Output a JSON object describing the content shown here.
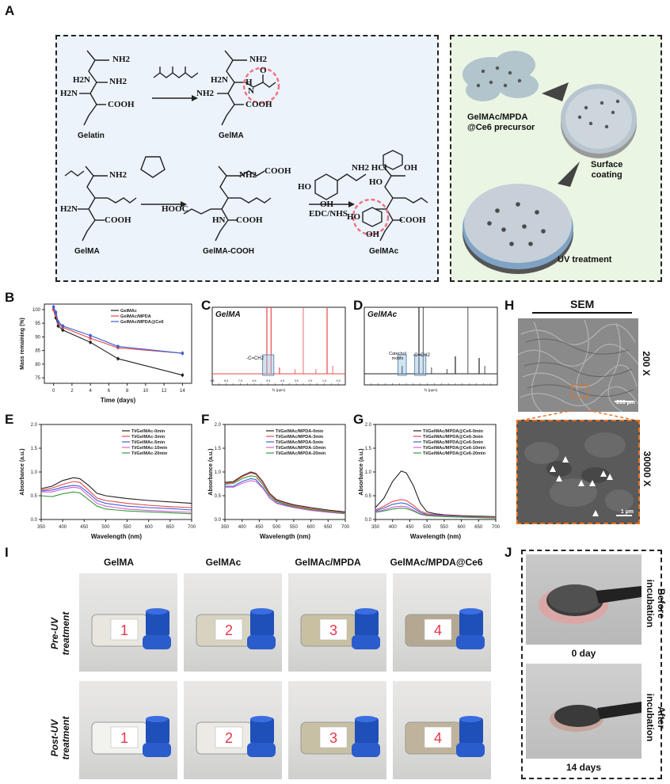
{
  "panels": {
    "A": "A",
    "B": "B",
    "C": "C",
    "D": "D",
    "E": "E",
    "F": "F",
    "G": "G",
    "H": "H",
    "I": "I",
    "J": "J"
  },
  "schemeA": {
    "row1": {
      "nh2_a": "NH2",
      "h2n_a": "H2N",
      "nh2_b": "NH2",
      "h2n_b": "H2N",
      "cooh": "COOH",
      "gelatin": "Gelatin",
      "gelma": "GelMA",
      "nh2_p1": "NH2",
      "h2n_p": "H2N",
      "nh2_p2": "NH2",
      "cooh_p": "COOH",
      "hn_p": "H",
      "n_p": "N",
      "o_p": "O"
    },
    "row2": {
      "gelma": "GelMA",
      "gelma_cooh": "GelMA-COOH",
      "gelmac": "GelMAc",
      "reagent_amine": "NH2 HCl",
      "reagent_ho": "HO",
      "reagent_oh": "OH",
      "edc": "EDC/NHS",
      "nh2": "NH2",
      "h2n": "H2N",
      "cooh": "COOH",
      "hooc": "HOOC",
      "hn": "HN",
      "ho2": "HO",
      "oh2": "OH",
      "ho3": "HO",
      "oh3": "OH",
      "cooh2": "COOH",
      "cooh3": "COOH"
    }
  },
  "schemeRight": {
    "precursor_l1": "GelMAc/MPDA",
    "precursor_l2": "@Ce6 precursor",
    "coating_l1": "Surface",
    "coating_l2": "coating",
    "uv": "UV treatment"
  },
  "chartB": {
    "ylabel": "Mass remaining (%)",
    "xlabel": "Time (days)"
  },
  "chartC": {
    "title": "GelMA",
    "annot": "-C=CH2",
    "xunit": "f1 (ppm)"
  },
  "chartD": {
    "title": "GelMAc",
    "annot1a": "Catechol",
    "annot1b": "motifs",
    "annot2": "-C=CH2",
    "xunit": "f1 (ppm)"
  },
  "chartE": {
    "ylabel": "Absorbance (a.u.)",
    "xlabel": "Wavelength (nm)"
  },
  "chartF": {
    "ylabel": "Absorbance (a.u.)",
    "xlabel": "Wavelength (nm)"
  },
  "chartG": {
    "ylabel": "Absorbance (a.u.)",
    "xlabel": "Wavelength (nm)"
  },
  "panelH": {
    "title": "SEM",
    "mag1": "200 X",
    "mag2": "30000 X",
    "scale1": "200 µm",
    "scale2": "1 µm"
  },
  "panelI": {
    "cols": [
      "GelMA",
      "GelMAc",
      "GelMAc/MPDA",
      "GelMAc/MPDA@Ce6"
    ],
    "row1_l1": "Pre-UV",
    "row1_l2": "treatment",
    "row2_l1": "Post-UV",
    "row2_l2": "treatment",
    "labels": [
      "1",
      "2",
      "3",
      "4"
    ]
  },
  "panelJ": {
    "before_l1": "Before",
    "before_l2": "incubation",
    "after_l1": "After",
    "after_l2": "incubation",
    "day0": "0 day",
    "day14": "14 days"
  },
  "colors": {
    "black": "#222222",
    "red": "#e8474a",
    "blue": "#3a5fd6",
    "pink": "#d35fd8",
    "green": "#3a9a3a",
    "scheme_bg_left": "#eaf2fb",
    "scheme_bg_right": "#e8f4e2",
    "dash_pink": "#f07080",
    "orange": "#e87020"
  },
  "chart_data": [
    {
      "type": "line",
      "panel": "B",
      "xlabel": "Time (days)",
      "ylabel": "Mass remaining (%)",
      "xlim": [
        -1,
        15
      ],
      "ylim": [
        73,
        102
      ],
      "xticks": [
        0,
        2,
        4,
        6,
        8,
        10,
        12,
        14
      ],
      "yticks": [
        75,
        80,
        85,
        90,
        95,
        100
      ],
      "tick_labels_x": [
        "0",
        "2",
        "4",
        "6",
        "8",
        "10",
        "12",
        "14"
      ],
      "tick_labels_y": [
        "75",
        "80",
        "85",
        "90",
        "95",
        "100"
      ],
      "x": [
        0,
        0.25,
        0.5,
        1,
        4,
        7,
        14
      ],
      "legend": "top-right",
      "series": [
        {
          "name": "GelMAc",
          "color": "#222222",
          "values": [
            100,
            97,
            94,
            92.5,
            88,
            82,
            76
          ]
        },
        {
          "name": "GelMAc/MPDA",
          "color": "#e8474a",
          "values": [
            100,
            98,
            95,
            93.5,
            89.5,
            86,
            84
          ]
        },
        {
          "name": "GelMAc/MPDA@Ce6",
          "color": "#3a5fd6",
          "values": [
            101,
            99,
            95.5,
            94,
            90.5,
            86.5,
            84
          ]
        }
      ]
    },
    {
      "type": "line",
      "panel": "C",
      "title": "GelMA",
      "xlabel": "f1 (ppm)",
      "x_reversed": true,
      "xlim": [
        9.5,
        0
      ],
      "tick_labels_x": [
        "9.5",
        "9.0",
        "8.5",
        "8.0",
        "7.5",
        "7.0",
        "6.5",
        "6.0",
        "5.5",
        "5.0",
        "4.5",
        "4.0",
        "3.5",
        "3.0",
        "2.5",
        "2.0",
        "1.5",
        "1.0",
        "0.5"
      ],
      "series": [
        {
          "name": "GelMA",
          "color": "#e8474a",
          "peaks_ppm": [
            5.6,
            5.3,
            4.7,
            3.6,
            3.0,
            2.1,
            1.3,
            0.9
          ]
        }
      ]
    },
    {
      "type": "line",
      "panel": "D",
      "title": "GelMAc",
      "xlabel": "f1 (ppm)",
      "x_reversed": true,
      "xlim": [
        9.5,
        0
      ],
      "series": [
        {
          "name": "GelMAc",
          "color": "#222222",
          "peaks_ppm": [
            6.8,
            5.6,
            5.3,
            4.7,
            3.6,
            3.0,
            2.1,
            1.3,
            0.9
          ]
        }
      ]
    },
    {
      "type": "line",
      "panel": "E",
      "xlabel": "Wavelength (nm)",
      "ylabel": "Absorbance (a.u.)",
      "xlim": [
        350,
        700
      ],
      "ylim": [
        0,
        2.0
      ],
      "tick_labels_x": [
        "350",
        "400",
        "450",
        "500",
        "550",
        "600",
        "650",
        "700"
      ],
      "tick_labels_y": [
        "0.0",
        "0.5",
        "1.0",
        "1.5",
        "2.0"
      ],
      "x": [
        350,
        375,
        400,
        425,
        440,
        460,
        480,
        500,
        525,
        550,
        600,
        650,
        700
      ],
      "legend": "top-right",
      "series": [
        {
          "name": "Ti/GelMAc-0min",
          "color": "#222222",
          "values": [
            0.65,
            0.7,
            0.82,
            0.88,
            0.86,
            0.72,
            0.55,
            0.5,
            0.47,
            0.44,
            0.4,
            0.37,
            0.34
          ]
        },
        {
          "name": "Ti/GelMAc-3min",
          "color": "#e8474a",
          "values": [
            0.62,
            0.66,
            0.74,
            0.8,
            0.78,
            0.62,
            0.45,
            0.4,
            0.37,
            0.34,
            0.3,
            0.27,
            0.25
          ]
        },
        {
          "name": "Ti/GelMAc-5min",
          "color": "#3a5fd6",
          "values": [
            0.6,
            0.62,
            0.68,
            0.72,
            0.7,
            0.56,
            0.4,
            0.34,
            0.31,
            0.28,
            0.25,
            0.23,
            0.2
          ]
        },
        {
          "name": "Ti/GelMAc-10min",
          "color": "#d35fd8",
          "values": [
            0.58,
            0.58,
            0.64,
            0.68,
            0.66,
            0.5,
            0.34,
            0.28,
            0.25,
            0.22,
            0.19,
            0.17,
            0.15
          ]
        },
        {
          "name": "Ti/GelMAc-20min",
          "color": "#3a9a3a",
          "values": [
            0.5,
            0.48,
            0.54,
            0.58,
            0.56,
            0.42,
            0.28,
            0.22,
            0.2,
            0.18,
            0.16,
            0.14,
            0.12
          ]
        }
      ]
    },
    {
      "type": "line",
      "panel": "F",
      "xlabel": "Wavelength (nm)",
      "ylabel": "Absorbance (a.u.)",
      "xlim": [
        350,
        700
      ],
      "ylim": [
        0,
        2.0
      ],
      "tick_labels_x": [
        "350",
        "400",
        "450",
        "500",
        "550",
        "600",
        "650",
        "700"
      ],
      "tick_labels_y": [
        "0.0",
        "0.5",
        "1.0",
        "1.5",
        "2.0"
      ],
      "x": [
        350,
        375,
        400,
        425,
        440,
        460,
        480,
        500,
        525,
        550,
        600,
        650,
        700
      ],
      "legend": "top-right",
      "series": [
        {
          "name": "Ti/GelMAc/MPDA-0min",
          "color": "#222222",
          "values": [
            0.78,
            0.8,
            0.92,
            1.0,
            0.97,
            0.8,
            0.55,
            0.42,
            0.36,
            0.31,
            0.25,
            0.2,
            0.16
          ]
        },
        {
          "name": "Ti/GelMAc/MPDA-3min",
          "color": "#e8474a",
          "values": [
            0.76,
            0.78,
            0.9,
            0.98,
            0.95,
            0.78,
            0.53,
            0.4,
            0.34,
            0.29,
            0.23,
            0.18,
            0.14
          ]
        },
        {
          "name": "Ti/GelMAc/MPDA-5min",
          "color": "#3a5fd6",
          "values": [
            0.7,
            0.7,
            0.8,
            0.86,
            0.84,
            0.68,
            0.46,
            0.35,
            0.3,
            0.26,
            0.2,
            0.16,
            0.13
          ]
        },
        {
          "name": "Ti/GelMAc/MPDA-10min",
          "color": "#d35fd8",
          "values": [
            0.68,
            0.68,
            0.76,
            0.82,
            0.8,
            0.66,
            0.45,
            0.34,
            0.29,
            0.25,
            0.19,
            0.15,
            0.12
          ]
        },
        {
          "name": "Ti/GelMAc/MPDA-20min",
          "color": "#3a9a3a",
          "values": [
            0.74,
            0.76,
            0.86,
            0.92,
            0.9,
            0.74,
            0.5,
            0.38,
            0.32,
            0.27,
            0.21,
            0.17,
            0.13
          ]
        }
      ]
    },
    {
      "type": "line",
      "panel": "G",
      "xlabel": "Wavelength (nm)",
      "ylabel": "Absorbance (a.u.)",
      "xlim": [
        350,
        700
      ],
      "ylim": [
        0,
        2.0
      ],
      "tick_labels_x": [
        "350",
        "400",
        "450",
        "500",
        "550",
        "600",
        "650",
        "700"
      ],
      "tick_labels_y": [
        "0.0",
        "0.5",
        "1.0",
        "1.5",
        "2.0"
      ],
      "x": [
        350,
        375,
        400,
        425,
        440,
        460,
        480,
        500,
        525,
        550,
        600,
        650,
        700
      ],
      "legend": "top-right",
      "series": [
        {
          "name": "Ti/GelMAc/MPDA@Ce6-0min",
          "color": "#222222",
          "values": [
            0.25,
            0.45,
            0.8,
            1.02,
            0.98,
            0.72,
            0.35,
            0.16,
            0.12,
            0.1,
            0.08,
            0.07,
            0.06
          ]
        },
        {
          "name": "Ti/GelMAc/MPDA@Ce6-3min",
          "color": "#e8474a",
          "values": [
            0.2,
            0.28,
            0.38,
            0.42,
            0.4,
            0.3,
            0.18,
            0.12,
            0.1,
            0.09,
            0.07,
            0.06,
            0.05
          ]
        },
        {
          "name": "Ti/GelMAc/MPDA@Ce6-5min",
          "color": "#3a5fd6",
          "values": [
            0.18,
            0.24,
            0.32,
            0.35,
            0.33,
            0.25,
            0.15,
            0.1,
            0.09,
            0.08,
            0.06,
            0.05,
            0.04
          ]
        },
        {
          "name": "Ti/GelMAc/MPDA@Ce6-10min",
          "color": "#d35fd8",
          "values": [
            0.16,
            0.2,
            0.26,
            0.28,
            0.27,
            0.2,
            0.12,
            0.09,
            0.08,
            0.07,
            0.05,
            0.04,
            0.04
          ]
        },
        {
          "name": "Ti/GelMAc/MPDA@Ce6-20min",
          "color": "#3a9a3a",
          "values": [
            0.15,
            0.18,
            0.22,
            0.24,
            0.23,
            0.18,
            0.11,
            0.08,
            0.07,
            0.06,
            0.05,
            0.04,
            0.03
          ]
        }
      ]
    }
  ]
}
